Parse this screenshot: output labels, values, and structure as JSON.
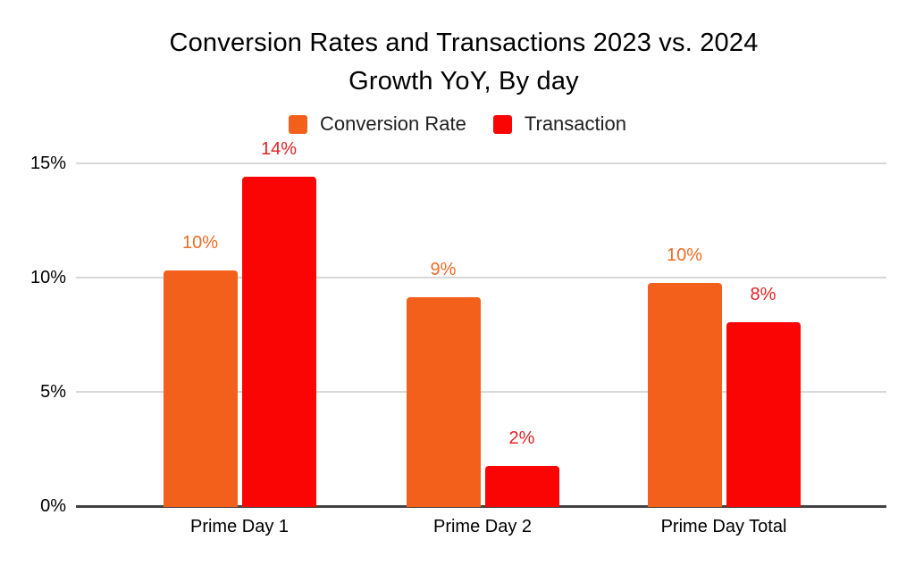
{
  "title": {
    "line1": "Conversion Rates and Transactions 2023 vs. 2024",
    "line2": "Growth YoY, By day"
  },
  "legend": [
    {
      "label": "Conversion Rate",
      "color": "#F2601C"
    },
    {
      "label": "Transaction",
      "color": "#FB0404"
    }
  ],
  "chart_data": {
    "type": "bar",
    "title": "Conversion Rates and Transactions 2023 vs. 2024 Growth YoY, By day",
    "categories": [
      "Prime Day 1",
      "Prime Day 2",
      "Prime Day Total"
    ],
    "series": [
      {
        "name": "Conversion Rate",
        "color": "#F2601C",
        "label_color": "#EE6C26",
        "values": [
          10.3,
          9.15,
          9.75
        ],
        "labels": [
          "10%",
          "9%",
          "10%"
        ]
      },
      {
        "name": "Transaction",
        "color": "#FB0404",
        "label_color": "#E02126",
        "values": [
          14.4,
          1.75,
          8.05
        ],
        "labels": [
          "14%",
          "2%",
          "8%"
        ]
      }
    ],
    "y_axis": {
      "ticks": [
        "0%",
        "5%",
        "10%",
        "15%"
      ],
      "tick_values": [
        0,
        5,
        10,
        15
      ],
      "ylim": [
        0,
        15
      ]
    },
    "grid": true,
    "legend_position": "top",
    "colors": {
      "gridline": "#D8D8D8",
      "axis": "#424242",
      "text": "#000000"
    }
  }
}
